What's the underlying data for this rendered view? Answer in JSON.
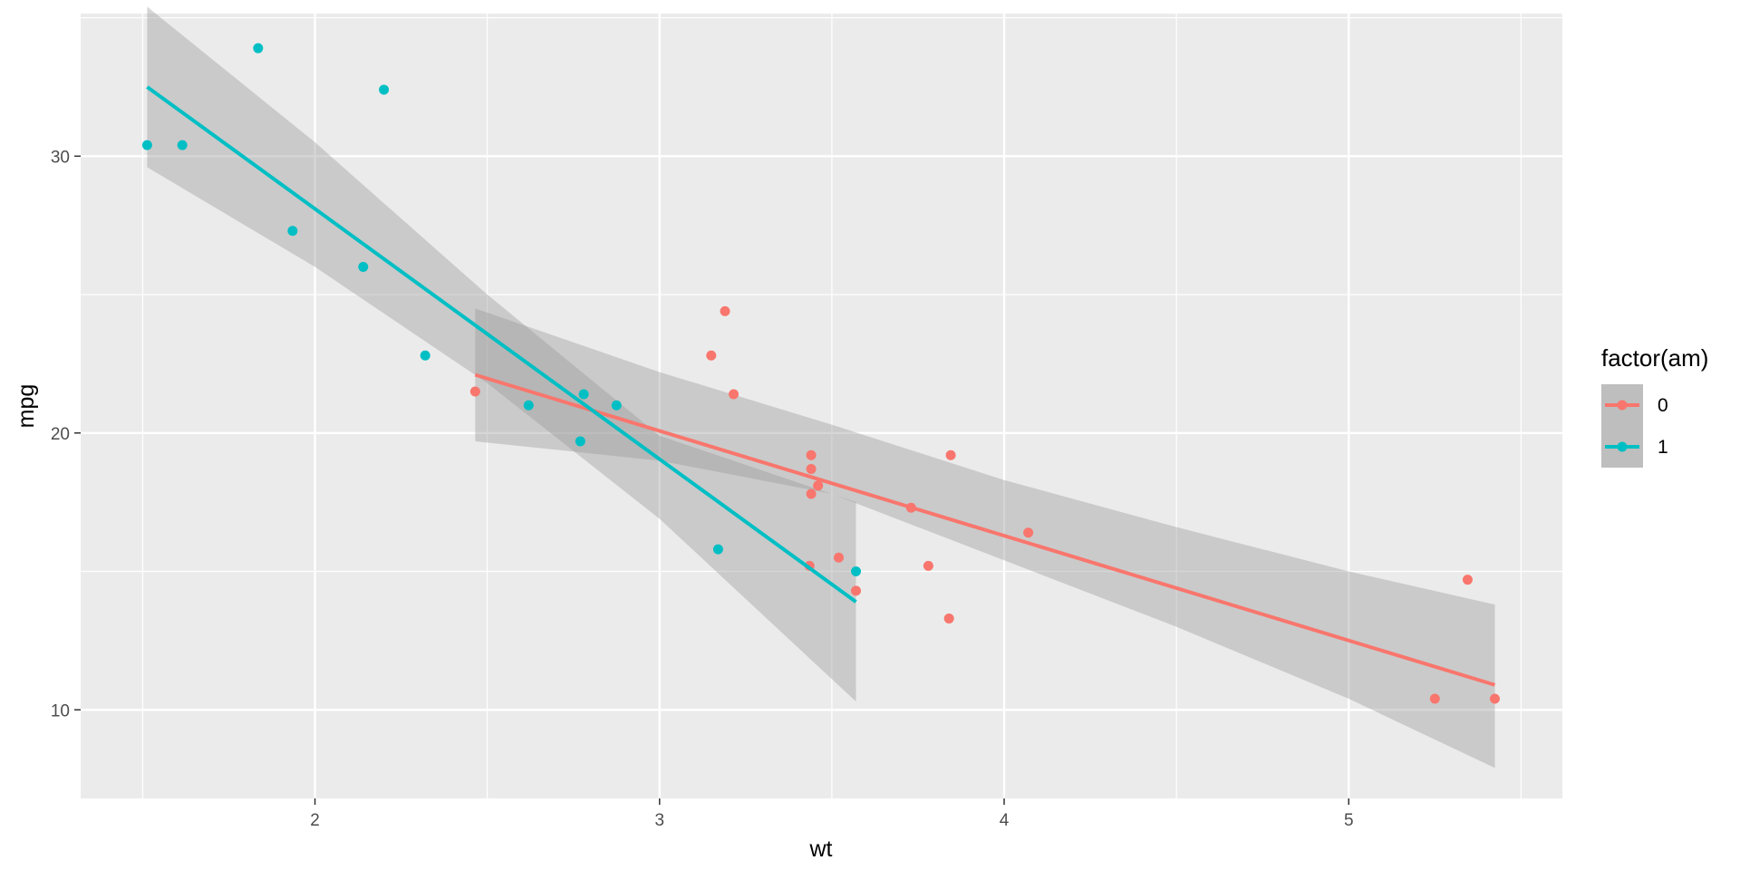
{
  "chart_data": {
    "type": "scatter",
    "title": "",
    "xlabel": "wt",
    "ylabel": "mpg",
    "xlim": [
      1.32,
      5.62
    ],
    "ylim": [
      6.8,
      35.15
    ],
    "x_ticks": [
      2,
      3,
      4,
      5
    ],
    "y_ticks": [
      10,
      20,
      30
    ],
    "x_tick_labels": [
      "2",
      "3",
      "4",
      "5"
    ],
    "y_tick_labels": [
      "10",
      "20",
      "30"
    ],
    "grid": true,
    "legend": {
      "title": "factor(am)",
      "placement": "right"
    },
    "series": [
      {
        "name": "0",
        "color": "#F8766D",
        "points": [
          {
            "x": 3.215,
            "y": 21.4
          },
          {
            "x": 3.44,
            "y": 18.7
          },
          {
            "x": 3.46,
            "y": 18.1
          },
          {
            "x": 3.57,
            "y": 14.3
          },
          {
            "x": 3.19,
            "y": 24.4
          },
          {
            "x": 3.15,
            "y": 22.8
          },
          {
            "x": 3.44,
            "y": 19.2
          },
          {
            "x": 3.44,
            "y": 17.8
          },
          {
            "x": 4.07,
            "y": 16.4
          },
          {
            "x": 3.73,
            "y": 17.3
          },
          {
            "x": 3.78,
            "y": 15.2
          },
          {
            "x": 5.25,
            "y": 10.4
          },
          {
            "x": 5.424,
            "y": 10.4
          },
          {
            "x": 5.345,
            "y": 14.7
          },
          {
            "x": 2.465,
            "y": 21.5
          },
          {
            "x": 3.52,
            "y": 15.5
          },
          {
            "x": 3.435,
            "y": 15.2
          },
          {
            "x": 3.84,
            "y": 13.3
          },
          {
            "x": 3.845,
            "y": 19.2
          }
        ],
        "fit": {
          "x": [
            2.465,
            5.424
          ],
          "y": [
            22.1,
            10.9
          ]
        },
        "ci_band": [
          {
            "x": 2.465,
            "lower": 19.7,
            "upper": 24.5
          },
          {
            "x": 3.0,
            "lower": 19.0,
            "upper": 22.2
          },
          {
            "x": 3.5,
            "lower": 17.8,
            "upper": 20.3
          },
          {
            "x": 4.0,
            "lower": 15.4,
            "upper": 18.3
          },
          {
            "x": 4.5,
            "lower": 13.0,
            "upper": 16.6
          },
          {
            "x": 5.0,
            "lower": 10.4,
            "upper": 15.0
          },
          {
            "x": 5.424,
            "lower": 7.9,
            "upper": 13.8
          }
        ]
      },
      {
        "name": "1",
        "color": "#00BFC4",
        "points": [
          {
            "x": 2.62,
            "y": 21.0
          },
          {
            "x": 2.875,
            "y": 21.0
          },
          {
            "x": 2.32,
            "y": 22.8
          },
          {
            "x": 2.2,
            "y": 32.4
          },
          {
            "x": 1.615,
            "y": 30.4
          },
          {
            "x": 1.835,
            "y": 33.9
          },
          {
            "x": 1.935,
            "y": 27.3
          },
          {
            "x": 2.14,
            "y": 26.0
          },
          {
            "x": 1.513,
            "y": 30.4
          },
          {
            "x": 3.17,
            "y": 15.8
          },
          {
            "x": 2.77,
            "y": 19.7
          },
          {
            "x": 3.57,
            "y": 15.0
          },
          {
            "x": 2.78,
            "y": 21.4
          }
        ],
        "fit": {
          "x": [
            1.513,
            3.57
          ],
          "y": [
            32.5,
            13.9
          ]
        },
        "ci_band": [
          {
            "x": 1.513,
            "lower": 29.6,
            "upper": 35.4
          },
          {
            "x": 2.0,
            "lower": 26.0,
            "upper": 30.5
          },
          {
            "x": 2.5,
            "lower": 21.8,
            "upper": 25.0
          },
          {
            "x": 3.0,
            "lower": 16.9,
            "upper": 19.9
          },
          {
            "x": 3.57,
            "lower": 10.3,
            "upper": 17.5
          }
        ]
      }
    ]
  }
}
